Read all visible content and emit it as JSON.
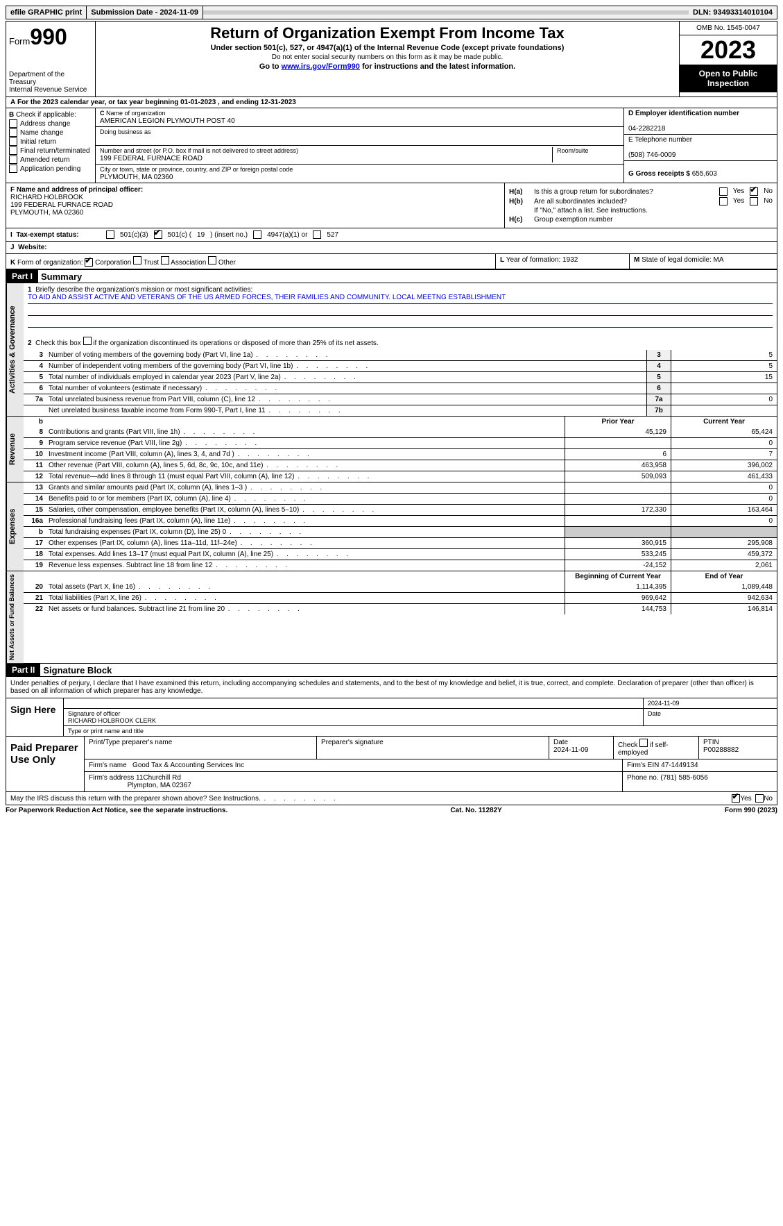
{
  "topbar": {
    "efile": "efile GRAPHIC print",
    "sub_label": "Submission Date - 2024-11-09",
    "dln": "DLN: 93493314010104"
  },
  "header": {
    "form_prefix": "Form",
    "form_num": "990",
    "dept": "Department of the Treasury",
    "irs": "Internal Revenue Service",
    "title": "Return of Organization Exempt From Income Tax",
    "sub": "Under section 501(c), 527, or 4947(a)(1) of the Internal Revenue Code (except private foundations)",
    "note": "Do not enter social security numbers on this form as it may be made public.",
    "goto_pre": "Go to ",
    "goto_link": "www.irs.gov/Form990",
    "goto_post": " for instructions and the latest information.",
    "omb": "OMB No. 1545-0047",
    "year": "2023",
    "open": "Open to Public Inspection"
  },
  "yearline": "For the 2023 calendar year, or tax year beginning 01-01-2023    , and ending 12-31-2023",
  "boxB": {
    "label": " Check if applicable:",
    "opts": [
      "Address change",
      "Name change",
      "Initial return",
      "Final return/terminated",
      "Amended return",
      "Application pending"
    ]
  },
  "boxC": {
    "name_lbl": "Name of organization",
    "name": "AMERICAN LEGION PLYMOUTH POST 40",
    "dba_lbl": "Doing business as",
    "addr_lbl": "Number and street (or P.O. box if mail is not delivered to street address)",
    "addr": "199 FEDERAL FURNACE ROAD",
    "room_lbl": "Room/suite",
    "city_lbl": "City or town, state or province, country, and ZIP or foreign postal code",
    "city": "PLYMOUTH, MA  02360"
  },
  "boxD": {
    "ein_lbl": "D Employer identification number",
    "ein": "04-2282218",
    "tel_lbl": "E Telephone number",
    "tel": "(508) 746-0009",
    "gross_lbl": "G Gross receipts $",
    "gross": "655,603"
  },
  "boxF": {
    "lbl": "F  Name and address of principal officer:",
    "name": "RICHARD HOLBROOK",
    "addr1": "199 FEDERAL FURNACE ROAD",
    "addr2": "PLYMOUTH, MA  02360"
  },
  "boxH": {
    "a_lbl": "Is this a group return for subordinates?",
    "b_lbl": "Are all subordinates included?",
    "b_note": "If \"No,\" attach a list. See instructions.",
    "c_lbl": "Group exemption number",
    "ha": "H(a)",
    "hb": "H(b)",
    "hc": "H(c)",
    "yes": "Yes",
    "no": "No"
  },
  "rowI": {
    "label": "Tax-exempt status:",
    "o1": "501(c)(3)",
    "o2a": "501(c) (",
    "o2b": "19",
    "o2c": ") (insert no.)",
    "o3": "4947(a)(1) or",
    "o4": "527"
  },
  "rowJ": {
    "label": "Website:",
    "val": ""
  },
  "rowK": {
    "label": "Form of organization:",
    "opts": [
      "Corporation",
      "Trust",
      "Association",
      "Other"
    ],
    "L": "Year of formation: 1932",
    "M": "State of legal domicile: MA"
  },
  "part1": {
    "hdr": "Part I",
    "title": "Summary",
    "q1": "Briefly describe the organization's mission or most significant activities:",
    "mission": "TO AID AND ASSIST ACTIVE AND VETERANS OF THE US ARMED FORCES, THEIR FAMILIES AND COMMUNITY. LOCAL MEETNG ESTABLISHMENT",
    "q2": "Check this box      if the organization discontinued its operations or disposed of more than 25% of its net assets.",
    "rows_gov": [
      {
        "n": "3",
        "d": "Number of voting members of the governing body (Part VI, line 1a)",
        "b": "3",
        "v": "5"
      },
      {
        "n": "4",
        "d": "Number of independent voting members of the governing body (Part VI, line 1b)",
        "b": "4",
        "v": "5"
      },
      {
        "n": "5",
        "d": "Total number of individuals employed in calendar year 2023 (Part V, line 2a)",
        "b": "5",
        "v": "15"
      },
      {
        "n": "6",
        "d": "Total number of volunteers (estimate if necessary)",
        "b": "6",
        "v": ""
      },
      {
        "n": "7a",
        "d": "Total unrelated business revenue from Part VIII, column (C), line 12",
        "b": "7a",
        "v": "0"
      },
      {
        "n": "",
        "d": "Net unrelated business taxable income from Form 990-T, Part I, line 11",
        "b": "7b",
        "v": ""
      }
    ],
    "py_hdr": "Prior Year",
    "cy_hdr": "Current Year",
    "rows_rev": [
      {
        "n": "8",
        "d": "Contributions and grants (Part VIII, line 1h)",
        "py": "45,129",
        "cy": "65,424"
      },
      {
        "n": "9",
        "d": "Program service revenue (Part VIII, line 2g)",
        "py": "",
        "cy": "0"
      },
      {
        "n": "10",
        "d": "Investment income (Part VIII, column (A), lines 3, 4, and 7d )",
        "py": "6",
        "cy": "7"
      },
      {
        "n": "11",
        "d": "Other revenue (Part VIII, column (A), lines 5, 6d, 8c, 9c, 10c, and 11e)",
        "py": "463,958",
        "cy": "396,002"
      },
      {
        "n": "12",
        "d": "Total revenue—add lines 8 through 11 (must equal Part VIII, column (A), line 12)",
        "py": "509,093",
        "cy": "461,433"
      }
    ],
    "rows_exp": [
      {
        "n": "13",
        "d": "Grants and similar amounts paid (Part IX, column (A), lines 1–3 )",
        "py": "",
        "cy": "0"
      },
      {
        "n": "14",
        "d": "Benefits paid to or for members (Part IX, column (A), line 4)",
        "py": "",
        "cy": "0"
      },
      {
        "n": "15",
        "d": "Salaries, other compensation, employee benefits (Part IX, column (A), lines 5–10)",
        "py": "172,330",
        "cy": "163,464"
      },
      {
        "n": "16a",
        "d": "Professional fundraising fees (Part IX, column (A), line 11e)",
        "py": "",
        "cy": "0"
      },
      {
        "n": "b",
        "d": "Total fundraising expenses (Part IX, column (D), line 25) 0",
        "py": "GREY",
        "cy": "GREY"
      },
      {
        "n": "17",
        "d": "Other expenses (Part IX, column (A), lines 11a–11d, 11f–24e)",
        "py": "360,915",
        "cy": "295,908"
      },
      {
        "n": "18",
        "d": "Total expenses. Add lines 13–17 (must equal Part IX, column (A), line 25)",
        "py": "533,245",
        "cy": "459,372"
      },
      {
        "n": "19",
        "d": "Revenue less expenses. Subtract line 18 from line 12",
        "py": "-24,152",
        "cy": "2,061"
      }
    ],
    "na_hdr1": "Beginning of Current Year",
    "na_hdr2": "End of Year",
    "rows_na": [
      {
        "n": "20",
        "d": "Total assets (Part X, line 16)",
        "py": "1,114,395",
        "cy": "1,089,448"
      },
      {
        "n": "21",
        "d": "Total liabilities (Part X, line 26)",
        "py": "969,642",
        "cy": "942,634"
      },
      {
        "n": "22",
        "d": "Net assets or fund balances. Subtract line 21 from line 20",
        "py": "144,753",
        "cy": "146,814"
      }
    ],
    "vtab_gov": "Activities & Governance",
    "vtab_rev": "Revenue",
    "vtab_exp": "Expenses",
    "vtab_na": "Net Assets or Fund Balances"
  },
  "part2": {
    "hdr": "Part II",
    "title": "Signature Block",
    "decl": "Under penalties of perjury, I declare that I have examined this return, including accompanying schedules and statements, and to the best of my knowledge and belief, it is true, correct, and complete. Declaration of preparer (other than officer) is based on all information of which preparer has any knowledge.",
    "sign_here": "Sign Here",
    "sig_lbl": "Signature of officer",
    "sig_name": "RICHARD HOLBROOK  CLERK",
    "sig_type": "Type or print name and title",
    "date_lbl": "Date",
    "date": "2024-11-09",
    "paid": "Paid Preparer Use Only",
    "p_name_lbl": "Print/Type preparer's name",
    "p_sig_lbl": "Preparer's signature",
    "p_date_lbl": "Date",
    "p_date": "2024-11-09",
    "p_check_lbl": "Check        if self-employed",
    "ptin_lbl": "PTIN",
    "ptin": "P00288882",
    "firm_name_lbl": "Firm's name",
    "firm_name": "Good Tax & Accounting Services Inc",
    "firm_ein_lbl": "Firm's EIN",
    "firm_ein": "47-1449134",
    "firm_addr_lbl": "Firm's address",
    "firm_addr1": "11Churchill Rd",
    "firm_addr2": "Plympton, MA  02367",
    "phone_lbl": "Phone no.",
    "phone": "(781) 585-6056",
    "discuss": "May the IRS discuss this return with the preparer shown above? See Instructions.",
    "yes": "Yes",
    "no": "No"
  },
  "footer": {
    "left": "For Paperwork Reduction Act Notice, see the separate instructions.",
    "mid": "Cat. No. 11282Y",
    "right": "Form 990 (2023)"
  },
  "letters": {
    "A": "A",
    "B": "B",
    "C": "C",
    "I": "I",
    "J": "J",
    "K": "K",
    "L": "L",
    "M": "M",
    "b": "b"
  }
}
